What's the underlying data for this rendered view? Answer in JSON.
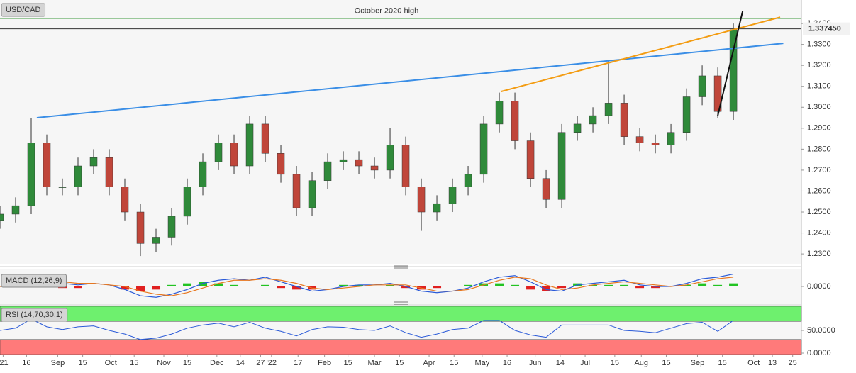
{
  "chart_data": [
    {
      "type": "candlestick",
      "title": "USD/CAD",
      "up_color": "#2f8a3a",
      "down_color": "#c0463a",
      "x": [
        0,
        1,
        2,
        3,
        4,
        5,
        6,
        7,
        8,
        9,
        10,
        11,
        12,
        13,
        14,
        15,
        16,
        17,
        18,
        19,
        20,
        21,
        22,
        23,
        24,
        25,
        26,
        27,
        28,
        29,
        30,
        31,
        32,
        33,
        34,
        35,
        36,
        37,
        38,
        39,
        40,
        41,
        42,
        43,
        44,
        45,
        46,
        47
      ],
      "open": [
        1.246,
        1.249,
        1.253,
        1.283,
        1.262,
        1.262,
        1.272,
        1.276,
        1.262,
        1.25,
        1.235,
        1.238,
        1.248,
        1.262,
        1.274,
        1.283,
        1.272,
        1.292,
        1.278,
        1.268,
        1.252,
        1.265,
        1.274,
        1.275,
        1.272,
        1.27,
        1.282,
        1.262,
        1.25,
        1.254,
        1.262,
        1.268,
        1.292,
        1.303,
        1.284,
        1.266,
        1.256,
        1.288,
        1.292,
        1.296,
        1.302,
        1.286,
        1.283,
        1.282,
        1.288,
        1.305,
        1.315,
        1.298
      ],
      "high": [
        1.253,
        1.257,
        1.295,
        1.287,
        1.266,
        1.276,
        1.28,
        1.28,
        1.266,
        1.254,
        1.242,
        1.252,
        1.266,
        1.278,
        1.287,
        1.287,
        1.296,
        1.296,
        1.282,
        1.272,
        1.269,
        1.278,
        1.279,
        1.279,
        1.276,
        1.29,
        1.286,
        1.266,
        1.258,
        1.266,
        1.272,
        1.296,
        1.307,
        1.307,
        1.288,
        1.27,
        1.292,
        1.296,
        1.3,
        1.322,
        1.306,
        1.29,
        1.287,
        1.292,
        1.309,
        1.32,
        1.319,
        1.34
      ],
      "low": [
        1.242,
        1.245,
        1.249,
        1.258,
        1.258,
        1.258,
        1.268,
        1.258,
        1.246,
        1.229,
        1.231,
        1.234,
        1.244,
        1.258,
        1.27,
        1.268,
        1.268,
        1.274,
        1.264,
        1.248,
        1.248,
        1.261,
        1.27,
        1.268,
        1.266,
        1.266,
        1.258,
        1.241,
        1.246,
        1.25,
        1.258,
        1.264,
        1.288,
        1.28,
        1.262,
        1.252,
        1.252,
        1.284,
        1.288,
        1.292,
        1.282,
        1.279,
        1.278,
        1.278,
        1.284,
        1.301,
        1.295,
        1.294
      ],
      "close": [
        1.249,
        1.253,
        1.283,
        1.262,
        1.262,
        1.272,
        1.276,
        1.262,
        1.25,
        1.235,
        1.238,
        1.248,
        1.262,
        1.274,
        1.283,
        1.272,
        1.292,
        1.278,
        1.268,
        1.252,
        1.265,
        1.274,
        1.275,
        1.272,
        1.27,
        1.282,
        1.262,
        1.25,
        1.254,
        1.262,
        1.268,
        1.292,
        1.303,
        1.284,
        1.266,
        1.256,
        1.288,
        1.292,
        1.296,
        1.302,
        1.286,
        1.283,
        1.282,
        1.288,
        1.305,
        1.315,
        1.298,
        1.337
      ],
      "xlim": [
        0,
        51.36
      ],
      "xticks": [
        {
          "value": 0.2,
          "label": "'21"
        },
        {
          "value": 1.7,
          "label": "16"
        },
        {
          "value": 3.7,
          "label": "Sep"
        },
        {
          "value": 5.3,
          "label": "15"
        },
        {
          "value": 7.1,
          "label": "Oct"
        },
        {
          "value": 8.6,
          "label": "15"
        },
        {
          "value": 10.5,
          "label": "Nov"
        },
        {
          "value": 12.0,
          "label": "15"
        },
        {
          "value": 13.9,
          "label": "Dec"
        },
        {
          "value": 15.4,
          "label": "14"
        },
        {
          "value": 16.7,
          "label": "27"
        },
        {
          "value": 17.4,
          "label": "'22"
        },
        {
          "value": 19.1,
          "label": "17"
        },
        {
          "value": 20.8,
          "label": "Feb"
        },
        {
          "value": 22.3,
          "label": "15"
        },
        {
          "value": 24.0,
          "label": "Mar"
        },
        {
          "value": 25.6,
          "label": "15"
        },
        {
          "value": 27.5,
          "label": "Apr"
        },
        {
          "value": 29.1,
          "label": "15"
        },
        {
          "value": 30.9,
          "label": "May"
        },
        {
          "value": 32.5,
          "label": "16"
        },
        {
          "value": 34.3,
          "label": "Jun"
        },
        {
          "value": 35.9,
          "label": "14"
        },
        {
          "value": 37.5,
          "label": "Jul"
        },
        {
          "value": 39.4,
          "label": "15"
        },
        {
          "value": 41.1,
          "label": "Aug"
        },
        {
          "value": 42.7,
          "label": "15"
        },
        {
          "value": 44.7,
          "label": "Sep"
        },
        {
          "value": 46.3,
          "label": "15"
        },
        {
          "value": 48.3,
          "label": "Oct"
        },
        {
          "value": 49.5,
          "label": "13"
        },
        {
          "value": 50.8,
          "label": "25"
        }
      ],
      "ylim": [
        1.2253,
        1.3512
      ],
      "yticks": [
        {
          "value": 1.23,
          "label": "1.2300"
        },
        {
          "value": 1.24,
          "label": "1.2400"
        },
        {
          "value": 1.25,
          "label": "1.2500"
        },
        {
          "value": 1.26,
          "label": "1.2600"
        },
        {
          "value": 1.27,
          "label": "1.2700"
        },
        {
          "value": 1.28,
          "label": "1.2800"
        },
        {
          "value": 1.29,
          "label": "1.2900"
        },
        {
          "value": 1.3,
          "label": "1.3000"
        },
        {
          "value": 1.31,
          "label": "1.3100"
        },
        {
          "value": 1.32,
          "label": "1.3200"
        },
        {
          "value": 1.33,
          "label": "1.3300"
        },
        {
          "value": 1.34,
          "label": "1.3400"
        }
      ],
      "level": {
        "label": "October 2020 high",
        "value": 1.3425,
        "color": "#3c9a3c"
      },
      "last_price": {
        "value": 1.33745,
        "label": "1.337450"
      },
      "trendlines": [
        {
          "color": "#3a8ee6",
          "x": [
            2.36,
            50.2
          ],
          "y": [
            1.295,
            1.3305
          ]
        },
        {
          "color": "#f39c12",
          "x": [
            32.1,
            50
          ],
          "y": [
            1.3075,
            1.343
          ]
        },
        {
          "color": "#111111",
          "x": [
            46,
            47.6
          ],
          "y": [
            1.296,
            1.346
          ]
        }
      ]
    },
    {
      "type": "macd",
      "title": "MACD (12,26,9)",
      "ylim": [
        -0.011,
        0.011
      ],
      "yticks": [
        {
          "value": 0,
          "label": "0.0000"
        }
      ],
      "series": [
        {
          "color": "#2a5ad8",
          "values": [
            0,
            0.002,
            0.006,
            0.005,
            0.002,
            0.001,
            0.002,
            0.001,
            -0.002,
            -0.006,
            -0.007,
            -0.005,
            -0.002,
            0.002,
            0.004,
            0.005,
            0.004,
            0.006,
            0.003,
            0,
            -0.003,
            -0.002,
            0,
            0.001,
            0.001,
            0.002,
            0,
            -0.003,
            -0.004,
            -0.003,
            -0.001,
            0.003,
            0.006,
            0.007,
            0.003,
            -0.002,
            -0.003,
            0.001,
            0.002,
            0.003,
            0.004,
            0.001,
            0,
            0,
            0.002,
            0.005,
            0.006,
            0.008
          ]
        },
        {
          "color": "#e8771e",
          "values": [
            0,
            0.001,
            0.003,
            0.004,
            0.003,
            0.002,
            0.002,
            0.001,
            0,
            -0.003,
            -0.005,
            -0.006,
            -0.004,
            -0.001,
            0.002,
            0.004,
            0.004,
            0.005,
            0.004,
            0.002,
            -0.001,
            -0.002,
            -0.001,
            0,
            0.001,
            0.001,
            0.001,
            -0.001,
            -0.003,
            -0.003,
            -0.002,
            0.001,
            0.004,
            0.006,
            0.005,
            0.001,
            -0.002,
            -0.001,
            0.001,
            0.002,
            0.003,
            0.002,
            0.001,
            0,
            0.001,
            0.003,
            0.005,
            0.006
          ]
        }
      ],
      "histogram": {
        "up_color": "#22c322",
        "down_color": "#e02020",
        "values": [
          0,
          0.001,
          0.003,
          0.001,
          -0.001,
          -0.001,
          0,
          0,
          -0.002,
          -0.003,
          -0.002,
          0.001,
          0.002,
          0.003,
          0.002,
          0.001,
          0,
          0.001,
          -0.001,
          -0.002,
          -0.002,
          0,
          0.001,
          0.001,
          0,
          0.001,
          -0.001,
          -0.002,
          -0.001,
          0,
          0.001,
          0.002,
          0.002,
          0.001,
          -0.002,
          -0.003,
          -0.001,
          0.002,
          0.001,
          0.001,
          0.001,
          -0.001,
          -0.001,
          0,
          0.001,
          0.002,
          0.001,
          0.002
        ]
      }
    },
    {
      "type": "rsi",
      "title": "RSI (14,70,30,1)",
      "ylim": [
        -3.1,
        103.1
      ],
      "yticks": [
        {
          "value": 0,
          "label": "0.0000"
        },
        {
          "value": 50,
          "label": "50.0000"
        }
      ],
      "upper": 70,
      "lower": 30,
      "upper_color": "#6ef06e",
      "lower_color": "#ff7a7a",
      "color": "#2a5ad8",
      "values": [
        50,
        55,
        75,
        58,
        52,
        58,
        60,
        50,
        42,
        30,
        33,
        42,
        55,
        62,
        66,
        58,
        68,
        55,
        48,
        38,
        52,
        58,
        57,
        52,
        50,
        60,
        45,
        35,
        42,
        52,
        55,
        72,
        72,
        50,
        40,
        35,
        62,
        62,
        62,
        62,
        50,
        48,
        45,
        55,
        65,
        68,
        48,
        72
      ]
    }
  ]
}
